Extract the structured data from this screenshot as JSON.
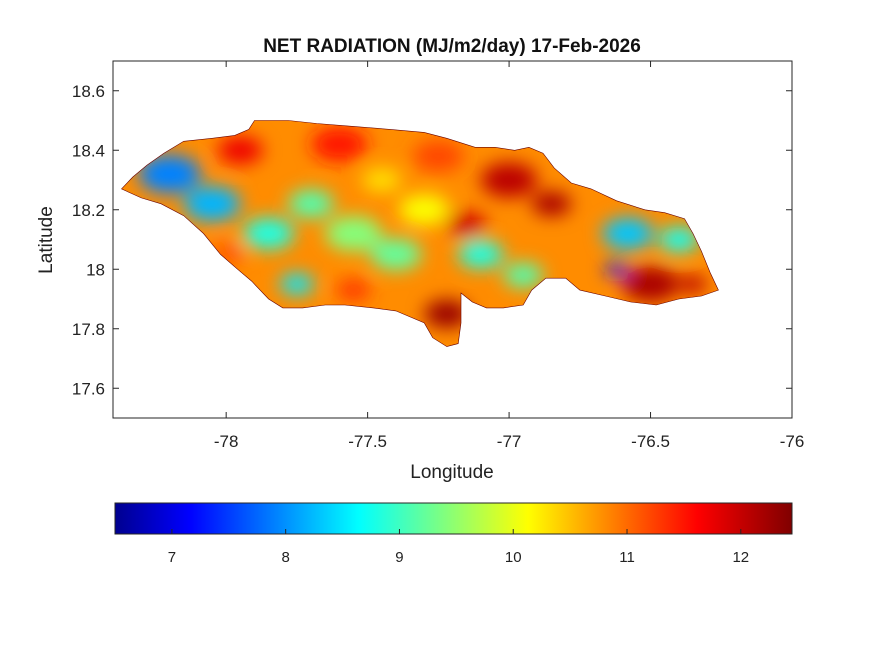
{
  "figure": {
    "title": "NET RADIATION (MJ/m2/day) 17-Feb-2026"
  },
  "axes": {
    "xlabel": "Longitude",
    "ylabel": "Latitude",
    "xlim": [
      -78.4,
      -76
    ],
    "ylim": [
      17.5,
      18.7
    ],
    "xticks": [
      -78,
      -77.5,
      -77,
      -76.5,
      -76
    ],
    "xtick_labels": [
      "-78",
      "-77.5",
      "-77",
      "-76.5",
      "-76"
    ],
    "yticks": [
      17.6,
      17.8,
      18,
      18.2,
      18.4,
      18.6
    ],
    "ytick_labels": [
      "17.6",
      "17.8",
      "18",
      "18.2",
      "18.4",
      "18.6"
    ],
    "grid": false
  },
  "colorbar": {
    "colormap": "jet",
    "range": [
      6.5,
      12.45
    ],
    "ticks": [
      7,
      8,
      9,
      10,
      11,
      12
    ],
    "tick_labels": [
      "7",
      "8",
      "9",
      "10",
      "11",
      "12"
    ],
    "placement": "bottom"
  },
  "map": {
    "region": "Jamaica",
    "outline_lonlat": [
      [
        -78.37,
        18.27
      ],
      [
        -78.33,
        18.31
      ],
      [
        -78.28,
        18.35
      ],
      [
        -78.22,
        18.39
      ],
      [
        -78.15,
        18.43
      ],
      [
        -78.05,
        18.44
      ],
      [
        -77.97,
        18.45
      ],
      [
        -77.92,
        18.47
      ],
      [
        -77.9,
        18.5
      ],
      [
        -77.78,
        18.5
      ],
      [
        -77.68,
        18.49
      ],
      [
        -77.55,
        18.48
      ],
      [
        -77.42,
        18.47
      ],
      [
        -77.3,
        18.46
      ],
      [
        -77.22,
        18.44
      ],
      [
        -77.12,
        18.41
      ],
      [
        -77.05,
        18.41
      ],
      [
        -76.98,
        18.4
      ],
      [
        -76.93,
        18.41
      ],
      [
        -76.88,
        18.39
      ],
      [
        -76.84,
        18.34
      ],
      [
        -76.78,
        18.29
      ],
      [
        -76.71,
        18.27
      ],
      [
        -76.62,
        18.23
      ],
      [
        -76.52,
        18.2
      ],
      [
        -76.45,
        18.19
      ],
      [
        -76.38,
        18.17
      ],
      [
        -76.35,
        18.12
      ],
      [
        -76.32,
        18.06
      ],
      [
        -76.29,
        17.99
      ],
      [
        -76.26,
        17.93
      ],
      [
        -76.32,
        17.91
      ],
      [
        -76.4,
        17.9
      ],
      [
        -76.48,
        17.88
      ],
      [
        -76.57,
        17.89
      ],
      [
        -76.66,
        17.91
      ],
      [
        -76.75,
        17.93
      ],
      [
        -76.8,
        17.97
      ],
      [
        -76.87,
        17.97
      ],
      [
        -76.92,
        17.93
      ],
      [
        -76.95,
        17.88
      ],
      [
        -77.02,
        17.87
      ],
      [
        -77.08,
        17.87
      ],
      [
        -77.13,
        17.89
      ],
      [
        -77.17,
        17.92
      ],
      [
        -77.17,
        17.82
      ],
      [
        -77.18,
        17.75
      ],
      [
        -77.22,
        17.74
      ],
      [
        -77.27,
        17.77
      ],
      [
        -77.3,
        17.82
      ],
      [
        -77.4,
        17.86
      ],
      [
        -77.48,
        17.87
      ],
      [
        -77.58,
        17.88
      ],
      [
        -77.65,
        17.88
      ],
      [
        -77.73,
        17.87
      ],
      [
        -77.8,
        17.87
      ],
      [
        -77.85,
        17.9
      ],
      [
        -77.91,
        17.96
      ],
      [
        -77.96,
        18.0
      ],
      [
        -78.02,
        18.05
      ],
      [
        -78.08,
        18.12
      ],
      [
        -78.15,
        18.18
      ],
      [
        -78.23,
        18.22
      ],
      [
        -78.3,
        18.24
      ],
      [
        -78.37,
        18.27
      ]
    ],
    "field_blobs": [
      {
        "lon": -78.2,
        "lat": 18.32,
        "r": 0.11,
        "value": 8.0
      },
      {
        "lon": -78.05,
        "lat": 18.22,
        "r": 0.1,
        "value": 8.3
      },
      {
        "lon": -77.85,
        "lat": 18.12,
        "r": 0.09,
        "value": 8.9
      },
      {
        "lon": -77.7,
        "lat": 18.22,
        "r": 0.08,
        "value": 9.2
      },
      {
        "lon": -77.55,
        "lat": 18.12,
        "r": 0.1,
        "value": 9.5
      },
      {
        "lon": -77.4,
        "lat": 18.05,
        "r": 0.09,
        "value": 9.3
      },
      {
        "lon": -77.3,
        "lat": 18.2,
        "r": 0.09,
        "value": 10.2
      },
      {
        "lon": -77.1,
        "lat": 18.05,
        "r": 0.08,
        "value": 8.9
      },
      {
        "lon": -76.95,
        "lat": 17.98,
        "r": 0.07,
        "value": 9.2
      },
      {
        "lon": -76.58,
        "lat": 18.12,
        "r": 0.09,
        "value": 8.4
      },
      {
        "lon": -76.4,
        "lat": 18.1,
        "r": 0.07,
        "value": 8.8
      },
      {
        "lon": -76.62,
        "lat": 18.0,
        "r": 0.04,
        "value": 7.4
      },
      {
        "lon": -77.75,
        "lat": 17.95,
        "r": 0.06,
        "value": 8.6
      },
      {
        "lon": -77.95,
        "lat": 18.4,
        "r": 0.08,
        "value": 11.8
      },
      {
        "lon": -77.6,
        "lat": 18.42,
        "r": 0.1,
        "value": 11.6
      },
      {
        "lon": -77.25,
        "lat": 18.38,
        "r": 0.09,
        "value": 11.3
      },
      {
        "lon": -77.0,
        "lat": 18.3,
        "r": 0.1,
        "value": 12.1
      },
      {
        "lon": -76.85,
        "lat": 18.22,
        "r": 0.07,
        "value": 12.2
      },
      {
        "lon": -77.15,
        "lat": 18.15,
        "r": 0.07,
        "value": 12.0
      },
      {
        "lon": -77.22,
        "lat": 17.85,
        "r": 0.08,
        "value": 12.3
      },
      {
        "lon": -76.5,
        "lat": 17.95,
        "r": 0.1,
        "value": 12.2
      },
      {
        "lon": -76.35,
        "lat": 17.95,
        "r": 0.05,
        "value": 12.1
      },
      {
        "lon": -78.0,
        "lat": 18.05,
        "r": 0.06,
        "value": 11.2
      },
      {
        "lon": -77.55,
        "lat": 17.93,
        "r": 0.06,
        "value": 11.4
      },
      {
        "lon": -77.45,
        "lat": 18.3,
        "r": 0.07,
        "value": 10.4
      }
    ]
  }
}
